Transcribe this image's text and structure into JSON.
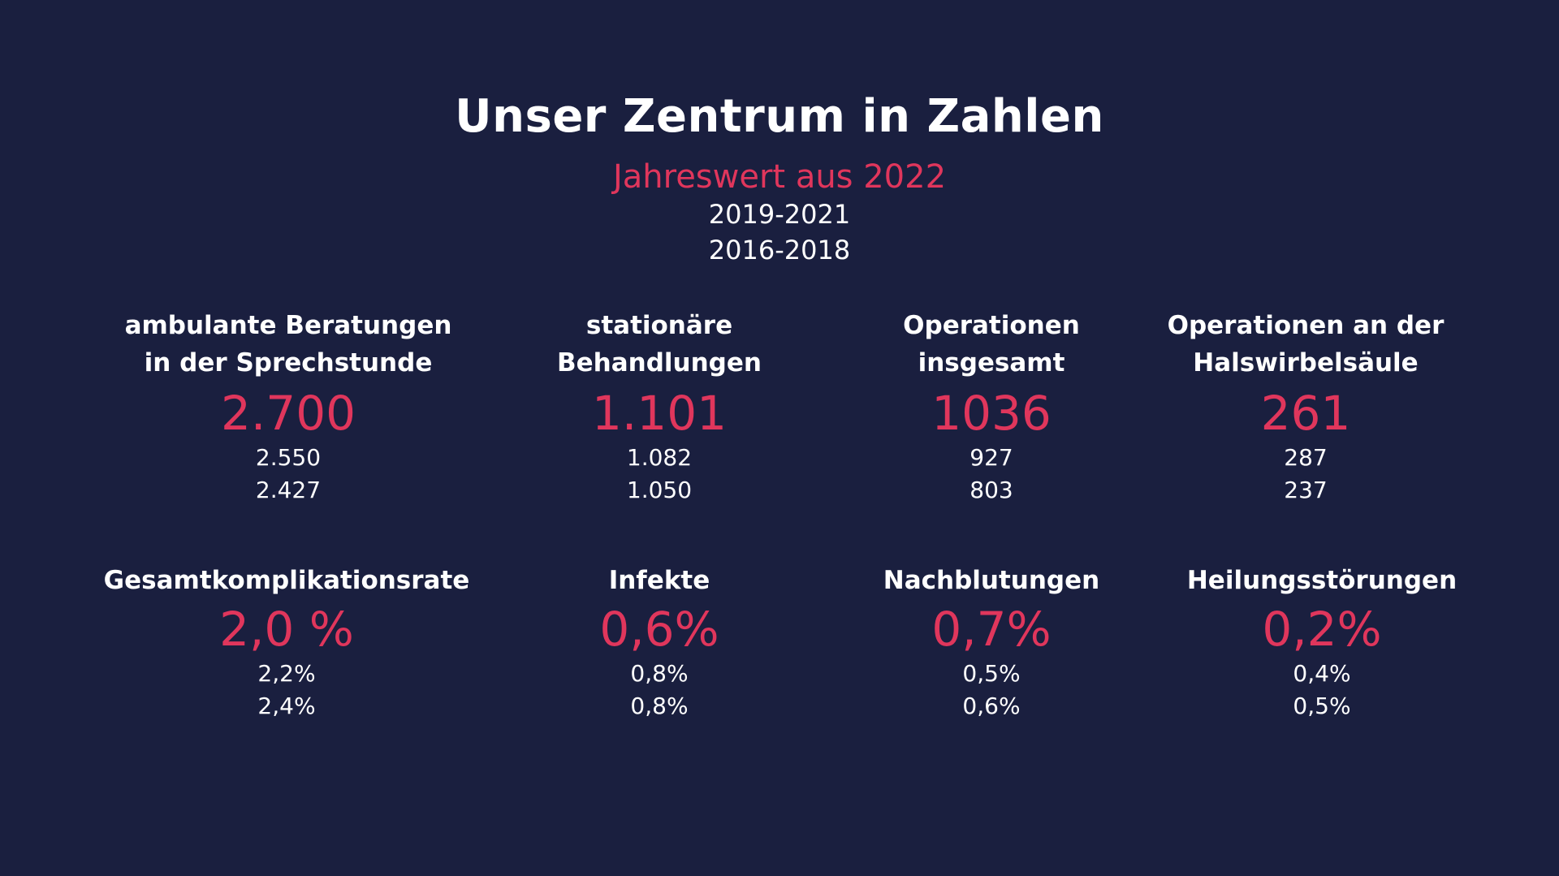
{
  "header": {
    "title": "Unser Zentrum in Zahlen",
    "legend": {
      "current": "Jahreswert aus 2022",
      "period_1": "2019-2021",
      "period_2": "2016-2018"
    }
  },
  "colors": {
    "background": "#1a1f3f",
    "accent": "#e0365c",
    "text": "#ffffff"
  },
  "stats_row_1": [
    {
      "label_line_1": "ambulante Beratungen",
      "label_line_2": "in der Sprechstunde",
      "value_2022": "2.700",
      "value_2019_2021": "2.550",
      "value_2016_2018": "2.427"
    },
    {
      "label_line_1": "stationäre",
      "label_line_2": "Behandlungen",
      "value_2022": "1.101",
      "value_2019_2021": "1.082",
      "value_2016_2018": "1.050"
    },
    {
      "label_line_1": "Operationen",
      "label_line_2": "insgesamt",
      "value_2022": "1036",
      "value_2019_2021": "927",
      "value_2016_2018": "803"
    },
    {
      "label_line_1": "Operationen an der",
      "label_line_2": "Halswirbelsäule",
      "value_2022": "261",
      "value_2019_2021": "287",
      "value_2016_2018": "237"
    }
  ],
  "stats_row_2": [
    {
      "label": "Gesamtkomplikationsrate",
      "value_2022": "2,0 %",
      "value_2019_2021": "2,2%",
      "value_2016_2018": "2,4%"
    },
    {
      "label": "Infekte",
      "value_2022": "0,6%",
      "value_2019_2021": "0,8%",
      "value_2016_2018": "0,8%"
    },
    {
      "label": "Nachblutungen",
      "value_2022": "0,7%",
      "value_2019_2021": "0,5%",
      "value_2016_2018": "0,6%"
    },
    {
      "label": "Heilungsstörungen",
      "value_2022": "0,2%",
      "value_2019_2021": "0,4%",
      "value_2016_2018": "0,5%"
    }
  ]
}
